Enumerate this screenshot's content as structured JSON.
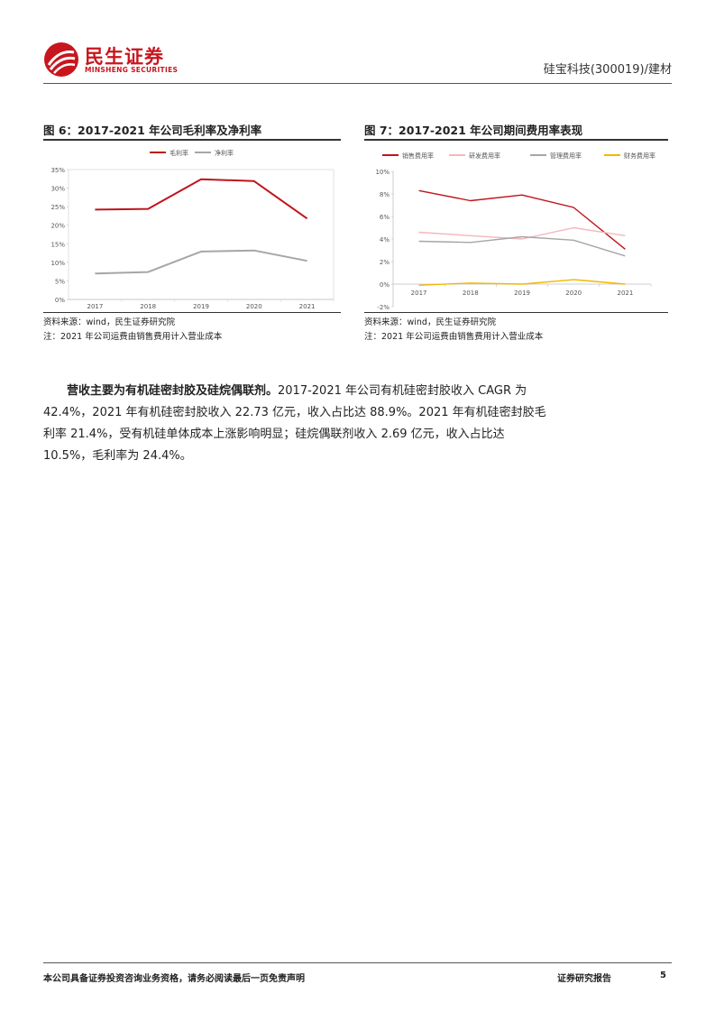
{
  "header": {
    "logo_cn": "民生证券",
    "logo_en": "MINSHENG SECURITIES",
    "doc_title": "硅宝科技(300019)/建材",
    "brand_color": "#c8161d"
  },
  "figure6": {
    "title": "图 6：2017-2021 年公司毛利率及净利率",
    "source": "资料来源：wind，民生证券研究院",
    "note": "注：2021 年公司运费由销售费用计入营业成本"
  },
  "figure7": {
    "title": "图 7：2017-2021 年公司期间费用率表现",
    "source": "资料来源：wind，民生证券研究院",
    "note": "注：2021 年公司运费由销售费用计入营业成本"
  },
  "chart_data": [
    {
      "type": "line",
      "title": "",
      "x": [
        "2017",
        "2018",
        "2019",
        "2020",
        "2021"
      ],
      "ylim": [
        0,
        35
      ],
      "yticks": [
        "0%",
        "5%",
        "10%",
        "15%",
        "20%",
        "25%",
        "30%",
        "35%"
      ],
      "grid": false,
      "legend": "top",
      "series": [
        {
          "name": "毛利率",
          "color": "#c0141b",
          "values": [
            24.2,
            24.4,
            32.4,
            31.9,
            21.8
          ]
        },
        {
          "name": "净利率",
          "color": "#a6a6a6",
          "values": [
            7.0,
            7.4,
            12.9,
            13.2,
            10.4
          ]
        }
      ]
    },
    {
      "type": "line",
      "title": "",
      "x": [
        "2017",
        "2018",
        "2019",
        "2020",
        "2021"
      ],
      "ylim": [
        -2,
        10
      ],
      "yticks": [
        "-2%",
        "0%",
        "2%",
        "4%",
        "6%",
        "8%",
        "10%"
      ],
      "grid": false,
      "legend": "top",
      "series": [
        {
          "name": "销售费用率",
          "color": "#c0141b",
          "values": [
            8.3,
            7.4,
            7.9,
            6.8,
            3.1
          ]
        },
        {
          "name": "研发费用率",
          "color": "#f4b6bd",
          "values": [
            4.6,
            4.3,
            4.0,
            5.0,
            4.3
          ]
        },
        {
          "name": "管理费用率",
          "color": "#a6a6a6",
          "values": [
            3.8,
            3.7,
            4.2,
            3.9,
            2.5
          ]
        },
        {
          "name": "财务费用率",
          "color": "#f2b800",
          "values": [
            -0.1,
            0.1,
            0.0,
            0.4,
            0.0
          ]
        }
      ]
    }
  ],
  "body": {
    "lead": "营收主要为有机硅密封胶及硅烷偶联剂。",
    "text": "2017-2021 年公司有机硅密封胶收入 CAGR 为 42.4%，2021 年有机硅密封胶收入 22.73 亿元，收入占比达 88.9%。2021 年有机硅密封胶毛利率 21.4%，受有机硅单体成本上涨影响明显；硅烷偶联剂收入 2.69 亿元，收入占比达 10.5%，毛利率为 24.4%。"
  },
  "footer": {
    "disclaimer": "本公司具备证券投资咨询业务资格，请务必阅读最后一页免责声明",
    "report_type": "证券研究报告",
    "page": "5"
  }
}
